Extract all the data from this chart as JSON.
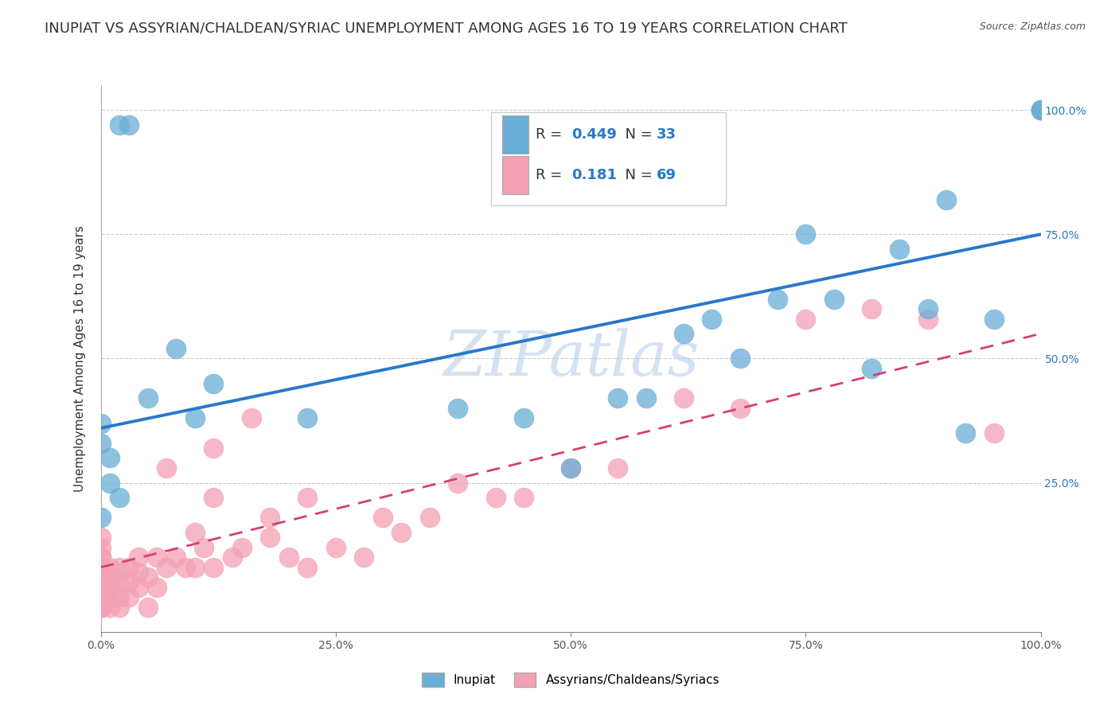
{
  "title": "INUPIAT VS ASSYRIAN/CHALDEAN/SYRIAC UNEMPLOYMENT AMONG AGES 16 TO 19 YEARS CORRELATION CHART",
  "source": "Source: ZipAtlas.com",
  "ylabel": "Unemployment Among Ages 16 to 19 years",
  "xlim": [
    0,
    1.0
  ],
  "ylim": [
    -0.05,
    1.05
  ],
  "inupiat_color": "#6aaed6",
  "inupiat_edge_color": "#5599c4",
  "assyrian_color": "#f4a0b5",
  "assyrian_edge_color": "#e88099",
  "inupiat_line_color": "#2878c8",
  "assyrian_line_color": "#d44070",
  "inupiat_R": 0.449,
  "inupiat_N": 33,
  "assyrian_R": 0.181,
  "assyrian_N": 69,
  "watermark": "ZIPatlas",
  "background_color": "#ffffff",
  "grid_color": "#cccccc",
  "title_fontsize": 13,
  "axis_label_fontsize": 11,
  "tick_fontsize": 10,
  "legend_fontsize": 13,
  "value_color": "#2878c8",
  "inupiat_x": [
    0.02,
    0.03,
    0.0,
    0.0,
    0.01,
    0.01,
    0.02,
    0.0,
    0.05,
    0.08,
    0.12,
    0.1,
    0.22,
    0.38,
    0.45,
    0.5,
    0.55,
    0.58,
    0.65,
    0.72,
    0.78,
    0.82,
    0.88,
    0.9,
    0.92,
    0.95,
    1.0,
    1.0,
    1.0,
    0.62,
    0.68,
    0.75,
    0.85
  ],
  "inupiat_y": [
    0.97,
    0.97,
    0.37,
    0.33,
    0.3,
    0.25,
    0.22,
    0.18,
    0.42,
    0.52,
    0.45,
    0.38,
    0.38,
    0.4,
    0.38,
    0.28,
    0.42,
    0.42,
    0.58,
    0.62,
    0.62,
    0.48,
    0.6,
    0.82,
    0.35,
    0.58,
    1.0,
    1.0,
    1.0,
    0.55,
    0.5,
    0.75,
    0.72
  ],
  "assyrian_x": [
    0.0,
    0.0,
    0.0,
    0.0,
    0.0,
    0.0,
    0.0,
    0.0,
    0.0,
    0.0,
    0.0,
    0.0,
    0.0,
    0.0,
    0.0,
    0.01,
    0.01,
    0.01,
    0.01,
    0.01,
    0.02,
    0.02,
    0.02,
    0.02,
    0.03,
    0.03,
    0.03,
    0.04,
    0.04,
    0.04,
    0.05,
    0.05,
    0.06,
    0.06,
    0.07,
    0.07,
    0.08,
    0.09,
    0.1,
    0.1,
    0.11,
    0.12,
    0.12,
    0.14,
    0.15,
    0.16,
    0.18,
    0.2,
    0.22,
    0.25,
    0.28,
    0.3,
    0.32,
    0.12,
    0.18,
    0.22,
    0.35,
    0.38,
    0.42,
    0.45,
    0.5,
    0.55,
    0.62,
    0.68,
    0.75,
    0.82,
    0.88,
    0.95,
    1.0
  ],
  "assyrian_y": [
    0.0,
    0.0,
    0.0,
    0.0,
    0.0,
    0.02,
    0.02,
    0.04,
    0.05,
    0.07,
    0.08,
    0.1,
    0.1,
    0.12,
    0.14,
    0.0,
    0.02,
    0.04,
    0.06,
    0.08,
    0.0,
    0.02,
    0.05,
    0.08,
    0.02,
    0.05,
    0.08,
    0.04,
    0.07,
    0.1,
    0.0,
    0.06,
    0.04,
    0.1,
    0.08,
    0.28,
    0.1,
    0.08,
    0.08,
    0.15,
    0.12,
    0.08,
    0.32,
    0.1,
    0.12,
    0.38,
    0.14,
    0.1,
    0.08,
    0.12,
    0.1,
    0.18,
    0.15,
    0.22,
    0.18,
    0.22,
    0.18,
    0.25,
    0.22,
    0.22,
    0.28,
    0.28,
    0.42,
    0.4,
    0.58,
    0.6,
    0.58,
    0.35,
    1.0
  ],
  "inupiat_line_x0": 0.0,
  "inupiat_line_y0": 0.36,
  "inupiat_line_x1": 1.0,
  "inupiat_line_y1": 0.75,
  "assyrian_line_x0": 0.0,
  "assyrian_line_y0": 0.08,
  "assyrian_line_x1": 1.0,
  "assyrian_line_y1": 0.55
}
